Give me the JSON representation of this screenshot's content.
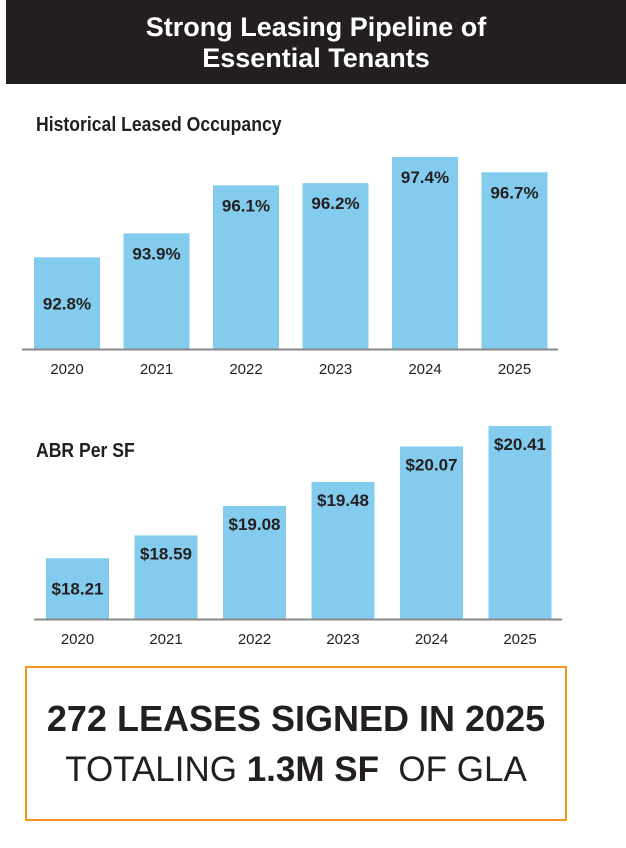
{
  "header": {
    "line1": "Strong Leasing Pipeline of",
    "line2": "Essential Tenants"
  },
  "colors": {
    "bar": "#84ccee",
    "banner_bg": "#231f20",
    "axis": "#888888",
    "callout_border": "#f7941d"
  },
  "chart_data": [
    {
      "type": "bar",
      "title": "Historical Leased Occupancy",
      "categories": [
        "2020",
        "2021",
        "2022",
        "2023",
        "2024",
        "2025"
      ],
      "values": [
        92.8,
        93.9,
        96.1,
        96.2,
        97.4,
        96.7
      ],
      "labels": [
        "92.8%",
        "93.9%",
        "96.1%",
        "96.2%",
        "97.4%",
        "96.7%"
      ],
      "unit": "%",
      "xlabel": "",
      "ylabel": "",
      "ylim": [
        88.6,
        97.4
      ]
    },
    {
      "type": "bar",
      "title": "ABR Per SF",
      "categories": [
        "2020",
        "2021",
        "2022",
        "2023",
        "2024",
        "2025"
      ],
      "values": [
        18.21,
        18.59,
        19.08,
        19.48,
        20.07,
        20.41
      ],
      "labels": [
        "$18.21",
        "$18.59",
        "$19.08",
        "$19.48",
        "$20.07",
        "$20.41"
      ],
      "unit": "$",
      "xlabel": "",
      "ylabel": "",
      "ylim": [
        17.2,
        20.41
      ]
    }
  ],
  "callout": {
    "line1": "272 LEASES SIGNED IN 2025",
    "line2_prefix": "TOTALING ",
    "line2_bold": "1.3M SF",
    "line2_suffix": "  OF GLA"
  }
}
